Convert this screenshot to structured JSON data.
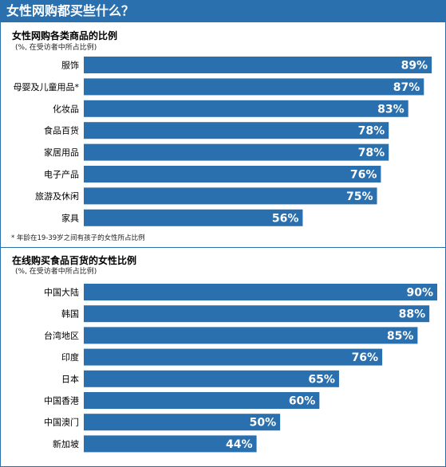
{
  "header": {
    "title": "女性网购都买些什么？"
  },
  "colors": {
    "bar": "#2a6fae",
    "banner": "#2a6fae",
    "label": "#ffffff"
  },
  "chart_data": [
    {
      "type": "bar",
      "orientation": "horizontal",
      "title": "女性网购各类商品的比例",
      "subtitle": "(%, 在受访者中所占比例)",
      "categories": [
        "服饰",
        "母婴及儿童用品*",
        "化妆品",
        "食品百货",
        "家居用品",
        "电子产品",
        "旅游及休闲",
        "家具"
      ],
      "values": [
        89,
        87,
        83,
        78,
        78,
        76,
        75,
        56
      ],
      "value_labels": [
        "89%",
        "87%",
        "83%",
        "78%",
        "78%",
        "76%",
        "75%",
        "56%"
      ],
      "xlim": [
        0,
        100
      ],
      "grid": false,
      "footnote": "* 年龄在19-39岁之间有孩子的女性所占比例"
    },
    {
      "type": "bar",
      "orientation": "horizontal",
      "title": "在线购买食品百货的女性比例",
      "subtitle": "(%, 在受访者中所占比例)",
      "categories": [
        "中国大陆",
        "韩国",
        "台湾地区",
        "印度",
        "日本",
        "中国香港",
        "中国澳门",
        "新加坡"
      ],
      "values": [
        90,
        88,
        85,
        76,
        65,
        60,
        50,
        44
      ],
      "value_labels": [
        "90%",
        "88%",
        "85%",
        "76%",
        "65%",
        "60%",
        "50%",
        "44%"
      ],
      "xlim": [
        0,
        100
      ],
      "grid": false
    }
  ]
}
